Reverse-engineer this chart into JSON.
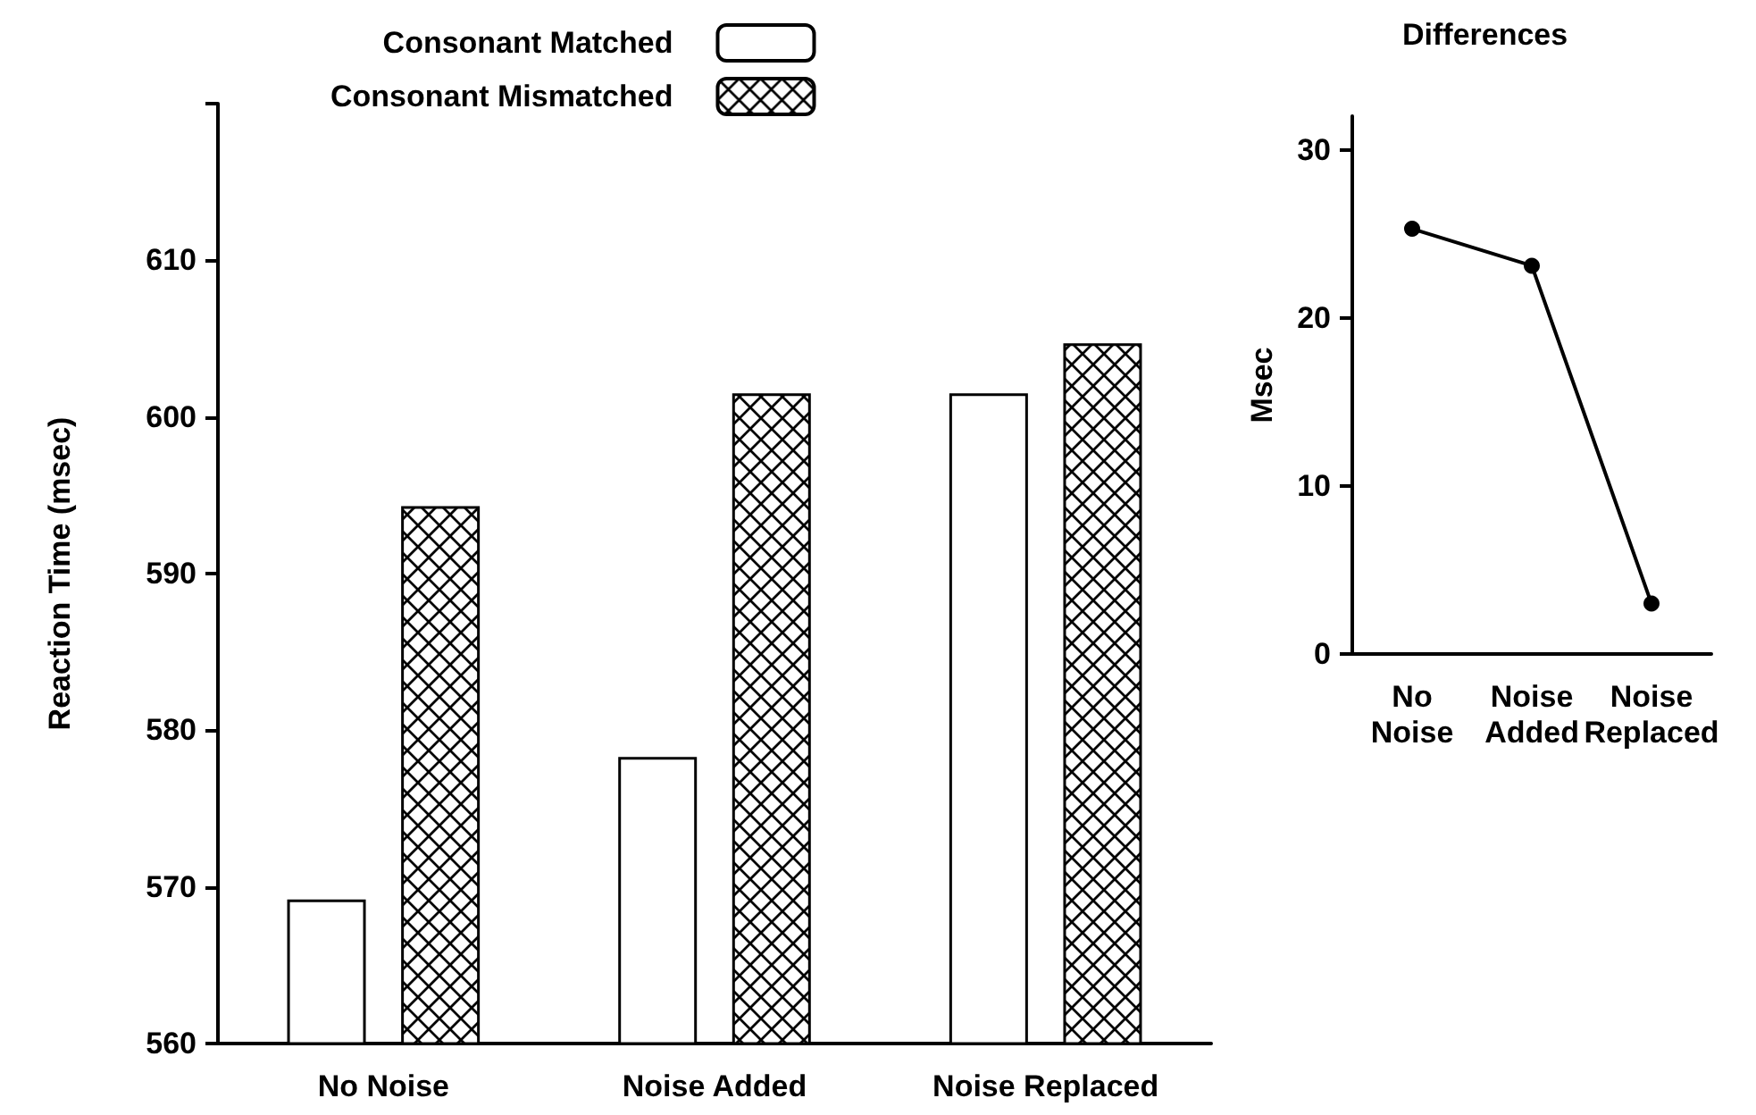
{
  "chart_data": [
    {
      "type": "bar",
      "ylabel": "Reaction Time (msec)",
      "categories": [
        "No Noise",
        "Noise Added",
        "Noise Replaced"
      ],
      "series": [
        {
          "name": "Consonant Matched",
          "color": "#ffffff",
          "values": [
            569.2,
            578.3,
            601.5
          ]
        },
        {
          "name": "Consonant Mismatched",
          "color": "#000000",
          "values": [
            594.3,
            601.5,
            604.7
          ]
        }
      ],
      "ylim": [
        560,
        620
      ],
      "yticks": [
        560,
        570,
        580,
        590,
        600,
        610,
        {
          "value": 620,
          "label": null
        }
      ],
      "grid": false,
      "legend": "top"
    },
    {
      "type": "line",
      "title": "Differences",
      "ylabel": "Msec",
      "categories": [
        "No Noise",
        "Noise Added",
        "Noise Replaced"
      ],
      "series": [
        {
          "color": "#000000",
          "values": [
            25.3,
            23.1,
            3.0
          ]
        }
      ],
      "ylim": [
        0,
        32
      ],
      "yticks": [
        0,
        10,
        20,
        30
      ],
      "grid": false,
      "marker": "circle",
      "legend": false
    }
  ]
}
